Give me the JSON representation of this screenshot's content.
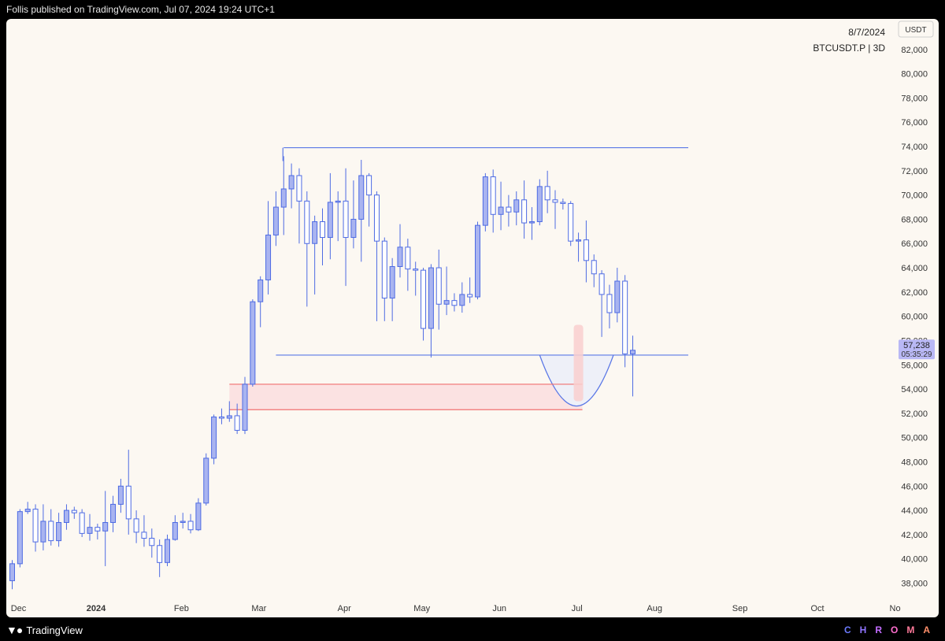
{
  "header": {
    "text": "Follis published on TradingView.com, Jul 07, 2024 19:24 UTC+1"
  },
  "footer": {
    "logo_text": "TradingView",
    "brand_letters": [
      {
        "ch": "C",
        "color": "#6c7bff"
      },
      {
        "ch": "H",
        "color": "#8f74ff"
      },
      {
        "ch": "R",
        "color": "#c36dff"
      },
      {
        "ch": "O",
        "color": "#ff6fcf"
      },
      {
        "ch": "M",
        "color": "#ff7a9a"
      },
      {
        "ch": "A",
        "color": "#ff8f6b"
      }
    ]
  },
  "chart_data": {
    "type": "candlestick",
    "symbol": "BTCUSDT.P | 3D",
    "date_label": "8/7/2024",
    "currency": "USDT",
    "price_label": "57,238",
    "countdown_label": "05:35:29",
    "last_price": 57238,
    "ylim": [
      36800,
      84000
    ],
    "yticks": [
      38000,
      40000,
      42000,
      44000,
      46000,
      48000,
      50000,
      52000,
      54000,
      56000,
      58000,
      60000,
      62000,
      64000,
      66000,
      68000,
      70000,
      72000,
      74000,
      76000,
      78000,
      80000,
      82000
    ],
    "xticks": [
      {
        "label": "Dec",
        "i": 0
      },
      {
        "label": "2024",
        "i": 10
      },
      {
        "label": "Feb",
        "i": 21
      },
      {
        "label": "Mar",
        "i": 31
      },
      {
        "label": "Apr",
        "i": 42
      },
      {
        "label": "May",
        "i": 52
      },
      {
        "label": "Jun",
        "i": 62
      },
      {
        "label": "Jul",
        "i": 72
      },
      {
        "label": "Aug",
        "i": 82
      },
      {
        "label": "Sep",
        "i": 93
      },
      {
        "label": "Oct",
        "i": 103
      },
      {
        "label": "No",
        "i": 113
      }
    ],
    "bold_xticks": [
      "2024"
    ],
    "candles": [
      [
        38200,
        39600,
        37500,
        39900
      ],
      [
        39600,
        43900,
        39300,
        44100
      ],
      [
        43900,
        44100,
        43700,
        44700
      ],
      [
        44100,
        41400,
        40600,
        44500
      ],
      [
        41400,
        43100,
        40700,
        44500
      ],
      [
        43100,
        41500,
        41100,
        44100
      ],
      [
        41500,
        43000,
        41000,
        43800
      ],
      [
        43000,
        44000,
        42400,
        44500
      ],
      [
        44000,
        43800,
        43300,
        44300
      ],
      [
        43800,
        42100,
        41800,
        44100
      ],
      [
        42100,
        42600,
        41500,
        43700
      ],
      [
        42600,
        42300,
        41600,
        42900
      ],
      [
        42300,
        43000,
        39400,
        45600
      ],
      [
        43000,
        44500,
        42200,
        45200
      ],
      [
        44500,
        46000,
        43800,
        46600
      ],
      [
        46000,
        43300,
        42000,
        49000
      ],
      [
        43300,
        42200,
        41300,
        44000
      ],
      [
        42200,
        41700,
        41000,
        43600
      ],
      [
        41700,
        41100,
        40100,
        42500
      ],
      [
        41100,
        39700,
        38500,
        41600
      ],
      [
        39700,
        41600,
        39400,
        42000
      ],
      [
        41600,
        43000,
        41500,
        43600
      ],
      [
        43000,
        43100,
        42500,
        43800
      ],
      [
        43100,
        42400,
        42100,
        43700
      ],
      [
        42400,
        44600,
        42300,
        45000
      ],
      [
        44600,
        48300,
        44400,
        48700
      ],
      [
        48300,
        51700,
        47800,
        51900
      ],
      [
        51700,
        51600,
        51100,
        52400
      ],
      [
        51600,
        51800,
        51300,
        53000
      ],
      [
        51800,
        50600,
        50300,
        52800
      ],
      [
        50600,
        54400,
        50300,
        55000
      ],
      [
        54400,
        61200,
        54200,
        61400
      ],
      [
        61200,
        63000,
        59100,
        63300
      ],
      [
        63000,
        66700,
        61800,
        69500
      ],
      [
        66700,
        69000,
        65800,
        70300
      ],
      [
        69000,
        70500,
        66700,
        73200
      ],
      [
        70500,
        71600,
        68900,
        72600
      ],
      [
        71600,
        69500,
        66000,
        72200
      ],
      [
        69500,
        66000,
        60800,
        70300
      ],
      [
        66000,
        67800,
        61800,
        68300
      ],
      [
        67800,
        66500,
        64200,
        68900
      ],
      [
        66500,
        69400,
        64700,
        71800
      ],
      [
        69400,
        69500,
        66200,
        70300
      ],
      [
        69500,
        66500,
        62500,
        72200
      ],
      [
        66500,
        68000,
        65600,
        71200
      ],
      [
        68000,
        71600,
        64500,
        72900
      ],
      [
        71600,
        70000,
        67400,
        71800
      ],
      [
        70000,
        66200,
        59600,
        70300
      ],
      [
        66200,
        61500,
        59600,
        66500
      ],
      [
        61500,
        64100,
        59600,
        64800
      ],
      [
        64100,
        65700,
        63200,
        67600
      ],
      [
        65700,
        63900,
        62100,
        66400
      ],
      [
        63900,
        63800,
        61700,
        64500
      ],
      [
        63800,
        59000,
        58000,
        64000
      ],
      [
        59000,
        64000,
        56600,
        64300
      ],
      [
        64000,
        61000,
        58900,
        65500
      ],
      [
        61000,
        61300,
        60100,
        64100
      ],
      [
        61300,
        60900,
        60400,
        61900
      ],
      [
        60900,
        61800,
        60300,
        62800
      ],
      [
        61800,
        61600,
        61100,
        63200
      ],
      [
        61600,
        67500,
        61400,
        67800
      ],
      [
        67500,
        71500,
        67000,
        71800
      ],
      [
        71500,
        68400,
        66900,
        72100
      ],
      [
        68400,
        69000,
        67100,
        71100
      ],
      [
        69000,
        68600,
        67400,
        70000
      ],
      [
        68600,
        69600,
        67500,
        70300
      ],
      [
        69600,
        67700,
        66400,
        71200
      ],
      [
        67700,
        67800,
        66300,
        69000
      ],
      [
        67800,
        70700,
        67500,
        71300
      ],
      [
        70700,
        69600,
        68500,
        72000
      ],
      [
        69600,
        69400,
        67200,
        70400
      ],
      [
        69400,
        69300,
        68800,
        69700
      ],
      [
        69300,
        66200,
        65800,
        69500
      ],
      [
        66200,
        66300,
        64500,
        66900
      ],
      [
        66300,
        64600,
        62800,
        67900
      ],
      [
        64600,
        63500,
        62400,
        65100
      ],
      [
        63500,
        61800,
        58300,
        63800
      ],
      [
        61800,
        60300,
        59000,
        62600
      ],
      [
        60300,
        62900,
        59500,
        64000
      ],
      [
        62900,
        56900,
        55800,
        63400
      ],
      [
        56900,
        57200,
        53400,
        58400
      ]
    ],
    "horizontal_lines": [
      {
        "name": "resistance-line",
        "price": 73900,
        "from_i": 35,
        "to_i": 87,
        "color": "#5a77e6"
      },
      {
        "name": "support-line",
        "price": 56800,
        "from_i": 34,
        "to_i": 87,
        "color": "#5a77e6"
      },
      {
        "name": "zone-top-line",
        "price": 54400,
        "from_i": 28,
        "to_i": 73,
        "color": "#f07070"
      },
      {
        "name": "zone-bottom-line",
        "price": 52300,
        "from_i": 28,
        "to_i": 73,
        "color": "#f07070"
      }
    ],
    "support_tail": {
      "from_i": 35,
      "price": 56800,
      "color": "#5a77e6"
    },
    "resistance_tail": {
      "i": 35,
      "top": 73900,
      "bottom": 72800,
      "color": "#5a77e6"
    },
    "zone": {
      "top": 54400,
      "bottom": 52300,
      "from_i": 28,
      "to_i": 73,
      "fill": "#fbe2e2"
    },
    "cup": {
      "from_i": 68,
      "to_i": 77,
      "top": 56800,
      "bottom": 52600,
      "stroke": "#5a77e6",
      "fill": "#eef0f8"
    },
    "highlight": {
      "i": 73,
      "top": 59300,
      "bottom": 53000,
      "fill": "#f9cfcf"
    },
    "up_color": "#a9b4f0",
    "down_color": "#ffffff",
    "outline_color": "#4e6be3"
  }
}
